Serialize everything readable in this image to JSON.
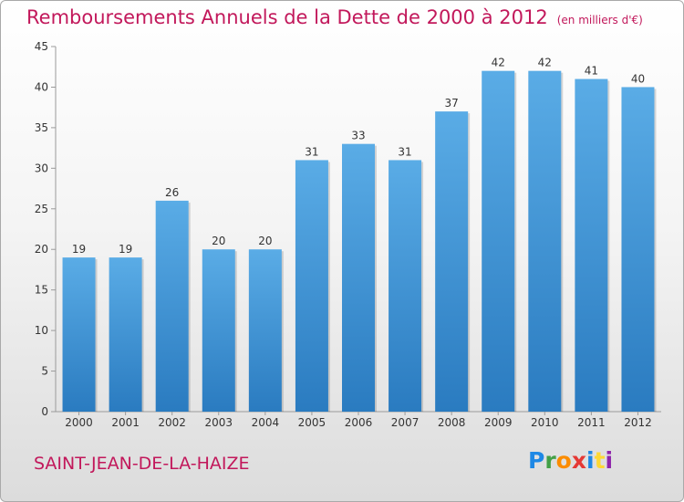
{
  "chart_data": {
    "type": "bar",
    "title": "Remboursements Annuels de la Dette de 2000 à 2012",
    "subtitle": "(en milliers d'€)",
    "categories": [
      "2000",
      "2001",
      "2002",
      "2003",
      "2004",
      "2005",
      "2006",
      "2007",
      "2008",
      "2009",
      "2010",
      "2011",
      "2012"
    ],
    "values": [
      19,
      19,
      26,
      20,
      20,
      31,
      33,
      31,
      37,
      42,
      42,
      41,
      40
    ],
    "ylim": [
      0,
      45
    ],
    "yticks": [
      0,
      5,
      10,
      15,
      20,
      25,
      30,
      35,
      40,
      45
    ],
    "grid": false,
    "bar_color": "#5aace6",
    "bar_color_dark": "#2a7bc0"
  },
  "footer": {
    "commune": "SAINT-JEAN-DE-LA-HAIZE",
    "logo": [
      "P",
      "r",
      "o",
      "x",
      "i",
      "t",
      "i"
    ],
    "logo_colors": [
      "#1e88e5",
      "#43a047",
      "#fb8c00",
      "#e53935",
      "#1e88e5",
      "#fdd835",
      "#8e24aa"
    ]
  }
}
